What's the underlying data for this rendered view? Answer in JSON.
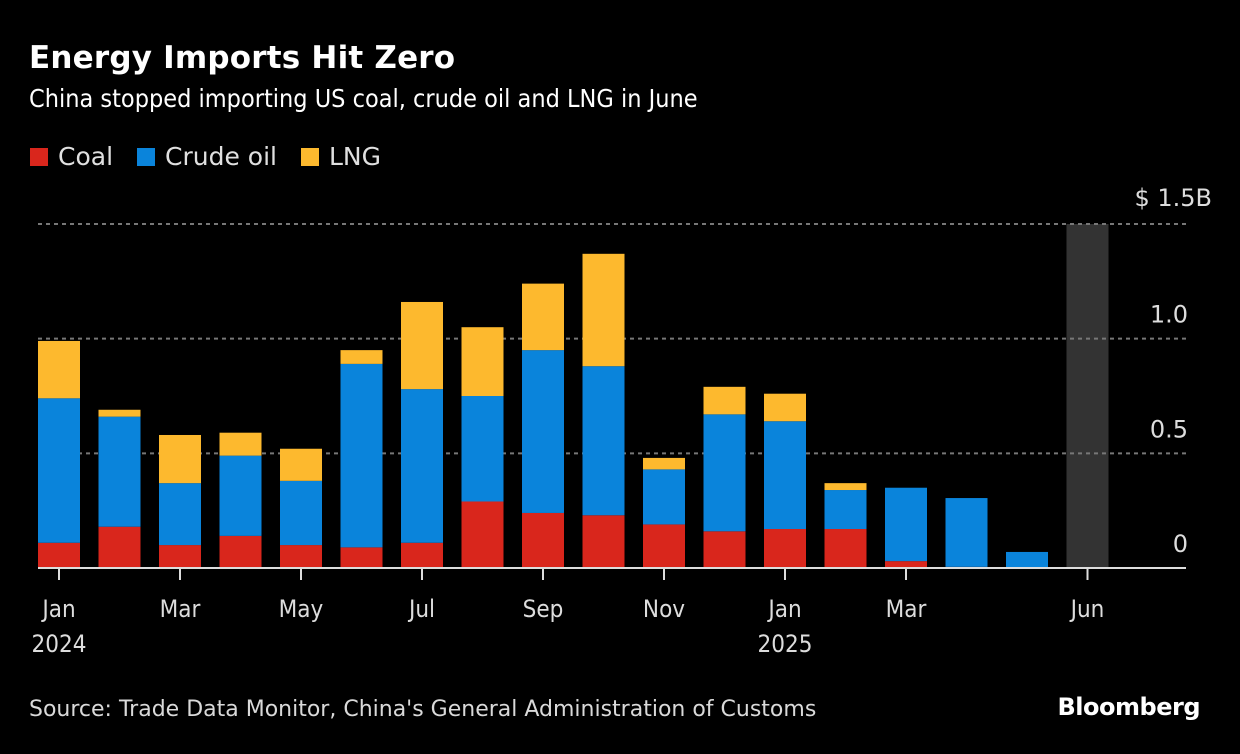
{
  "header": {
    "title": "Energy Imports Hit Zero",
    "subtitle": "China stopped importing US coal, crude oil and LNG in June"
  },
  "footer": {
    "source": "Source: Trade Data Monitor, China's General Administration of Customs",
    "brand": "Bloomberg"
  },
  "colors": {
    "coal": "#d9261c",
    "crude_oil": "#0a84db",
    "lng": "#fdb92e",
    "highlight": "#333333",
    "grid": "#777777",
    "axis": "#dddddd"
  },
  "chart_data": {
    "type": "bar",
    "stacked": true,
    "title": "Energy Imports Hit Zero",
    "subtitle": "China stopped importing US coal, crude oil and LNG in June",
    "xlabel": "",
    "ylabel": "",
    "y_unit_label": "$ 1.5B",
    "ylim": [
      0,
      1.5
    ],
    "yticks": [
      0,
      0.5,
      1.0,
      1.5
    ],
    "ytick_labels": [
      "0",
      "0.5",
      "1.0",
      "$ 1.5B"
    ],
    "grid": true,
    "legend_position": "top-left",
    "categories": [
      "Jan 2024",
      "Feb 2024",
      "Mar 2024",
      "Apr 2024",
      "May 2024",
      "Jun 2024",
      "Jul 2024",
      "Aug 2024",
      "Sep 2024",
      "Oct 2024",
      "Nov 2024",
      "Dec 2024",
      "Jan 2025",
      "Feb 2025",
      "Mar 2025",
      "Apr 2025",
      "May 2025",
      "Jun 2025"
    ],
    "xtick_labels": [
      {
        "index": 0,
        "label": "Jan",
        "year": "2024"
      },
      {
        "index": 2,
        "label": "Mar",
        "year": ""
      },
      {
        "index": 4,
        "label": "May",
        "year": ""
      },
      {
        "index": 6,
        "label": "Jul",
        "year": ""
      },
      {
        "index": 8,
        "label": "Sep",
        "year": ""
      },
      {
        "index": 10,
        "label": "Nov",
        "year": ""
      },
      {
        "index": 12,
        "label": "Jan",
        "year": "2025"
      },
      {
        "index": 14,
        "label": "Mar",
        "year": ""
      },
      {
        "index": 17,
        "label": "Jun",
        "year": ""
      }
    ],
    "highlight_index": 17,
    "series": [
      {
        "name": "Coal",
        "key": "coal",
        "values": [
          0.11,
          0.18,
          0.1,
          0.14,
          0.1,
          0.09,
          0.11,
          0.29,
          0.24,
          0.23,
          0.19,
          0.16,
          0.17,
          0.17,
          0.03,
          0.005,
          0,
          0
        ]
      },
      {
        "name": "Crude oil",
        "key": "crude_oil",
        "values": [
          0.63,
          0.48,
          0.27,
          0.35,
          0.28,
          0.8,
          0.67,
          0.46,
          0.71,
          0.65,
          0.24,
          0.51,
          0.47,
          0.17,
          0.32,
          0.3,
          0.07,
          0
        ]
      },
      {
        "name": "LNG",
        "key": "lng",
        "values": [
          0.25,
          0.03,
          0.21,
          0.1,
          0.14,
          0.06,
          0.38,
          0.3,
          0.29,
          0.49,
          0.05,
          0.12,
          0.12,
          0.03,
          0,
          0,
          0,
          0
        ]
      }
    ]
  }
}
